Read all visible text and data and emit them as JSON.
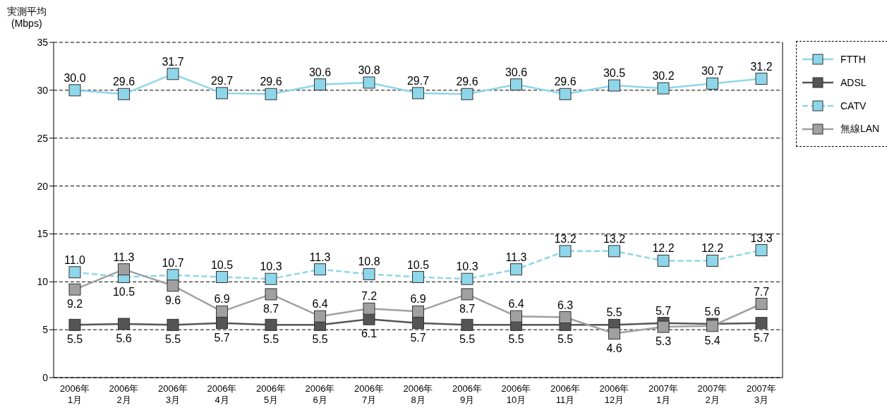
{
  "chart_data": {
    "type": "line",
    "ylabel": "実測平均\n(Mbps)",
    "categories": [
      "2006年\n1月",
      "2006年\n2月",
      "2006年\n3月",
      "2006年\n4月",
      "2006年\n5月",
      "2006年\n6月",
      "2006年\n7月",
      "2006年\n8月",
      "2006年\n9月",
      "2006年\n10月",
      "2006年\n11月",
      "2006年\n12月",
      "2007年\n1月",
      "2007年\n2月",
      "2007年\n3月"
    ],
    "series": [
      {
        "name": "FTTH",
        "color": "#8ed6ea",
        "line_style": "solid",
        "value_labels": [
          "30.0",
          "29.6",
          "31.7",
          "29.7",
          "29.6",
          "30.6",
          "30.8",
          "29.7",
          "29.6",
          "30.6",
          "29.6",
          "30.5",
          "30.2",
          "30.7",
          "31.2"
        ],
        "values": [
          30.0,
          29.6,
          31.7,
          29.7,
          29.6,
          30.6,
          30.8,
          29.7,
          29.6,
          30.6,
          29.6,
          30.5,
          30.2,
          30.7,
          31.2
        ]
      },
      {
        "name": "ADSL",
        "color": "#555555",
        "line_style": "solid",
        "value_labels": [
          "5.5",
          "5.6",
          "5.5",
          "5.7",
          "5.5",
          "5.5",
          "6.1",
          "5.7",
          "5.5",
          "5.5",
          "5.5",
          "5.5",
          "5.7",
          "5.6",
          "5.7"
        ],
        "values": [
          5.5,
          5.6,
          5.5,
          5.7,
          5.5,
          5.5,
          6.1,
          5.7,
          5.5,
          5.5,
          5.5,
          5.5,
          5.7,
          5.6,
          5.7
        ]
      },
      {
        "name": "CATV",
        "color": "#8ed6ea",
        "line_style": "dashed",
        "value_labels": [
          "11.0",
          "10.5",
          "10.7",
          "10.5",
          "10.3",
          "11.3",
          "10.8",
          "10.5",
          "10.3",
          "11.3",
          "13.2",
          "13.2",
          "12.2",
          "12.2",
          "13.3"
        ],
        "values": [
          11.0,
          10.5,
          10.7,
          10.5,
          10.3,
          11.3,
          10.8,
          10.5,
          10.3,
          11.3,
          13.2,
          13.2,
          12.2,
          12.2,
          13.3
        ]
      },
      {
        "name": "無線LAN",
        "color": "#a0a0a0",
        "line_style": "solid",
        "value_labels": [
          "9.2",
          "11.3",
          "9.6",
          "6.9",
          "8.7",
          "6.4",
          "7.2",
          "6.9",
          "8.7",
          "6.4",
          "6.3",
          "4.6",
          "5.3",
          "5.4",
          "7.7"
        ],
        "values": [
          9.2,
          11.3,
          9.6,
          6.9,
          8.7,
          6.4,
          7.2,
          6.9,
          8.7,
          6.4,
          6.3,
          4.6,
          5.3,
          5.4,
          7.7
        ]
      }
    ],
    "ylim": [
      0,
      35
    ],
    "yticks": [
      0,
      5,
      10,
      15,
      20,
      25,
      30,
      35
    ],
    "grid": "y",
    "legend": "right",
    "marker": "square"
  }
}
